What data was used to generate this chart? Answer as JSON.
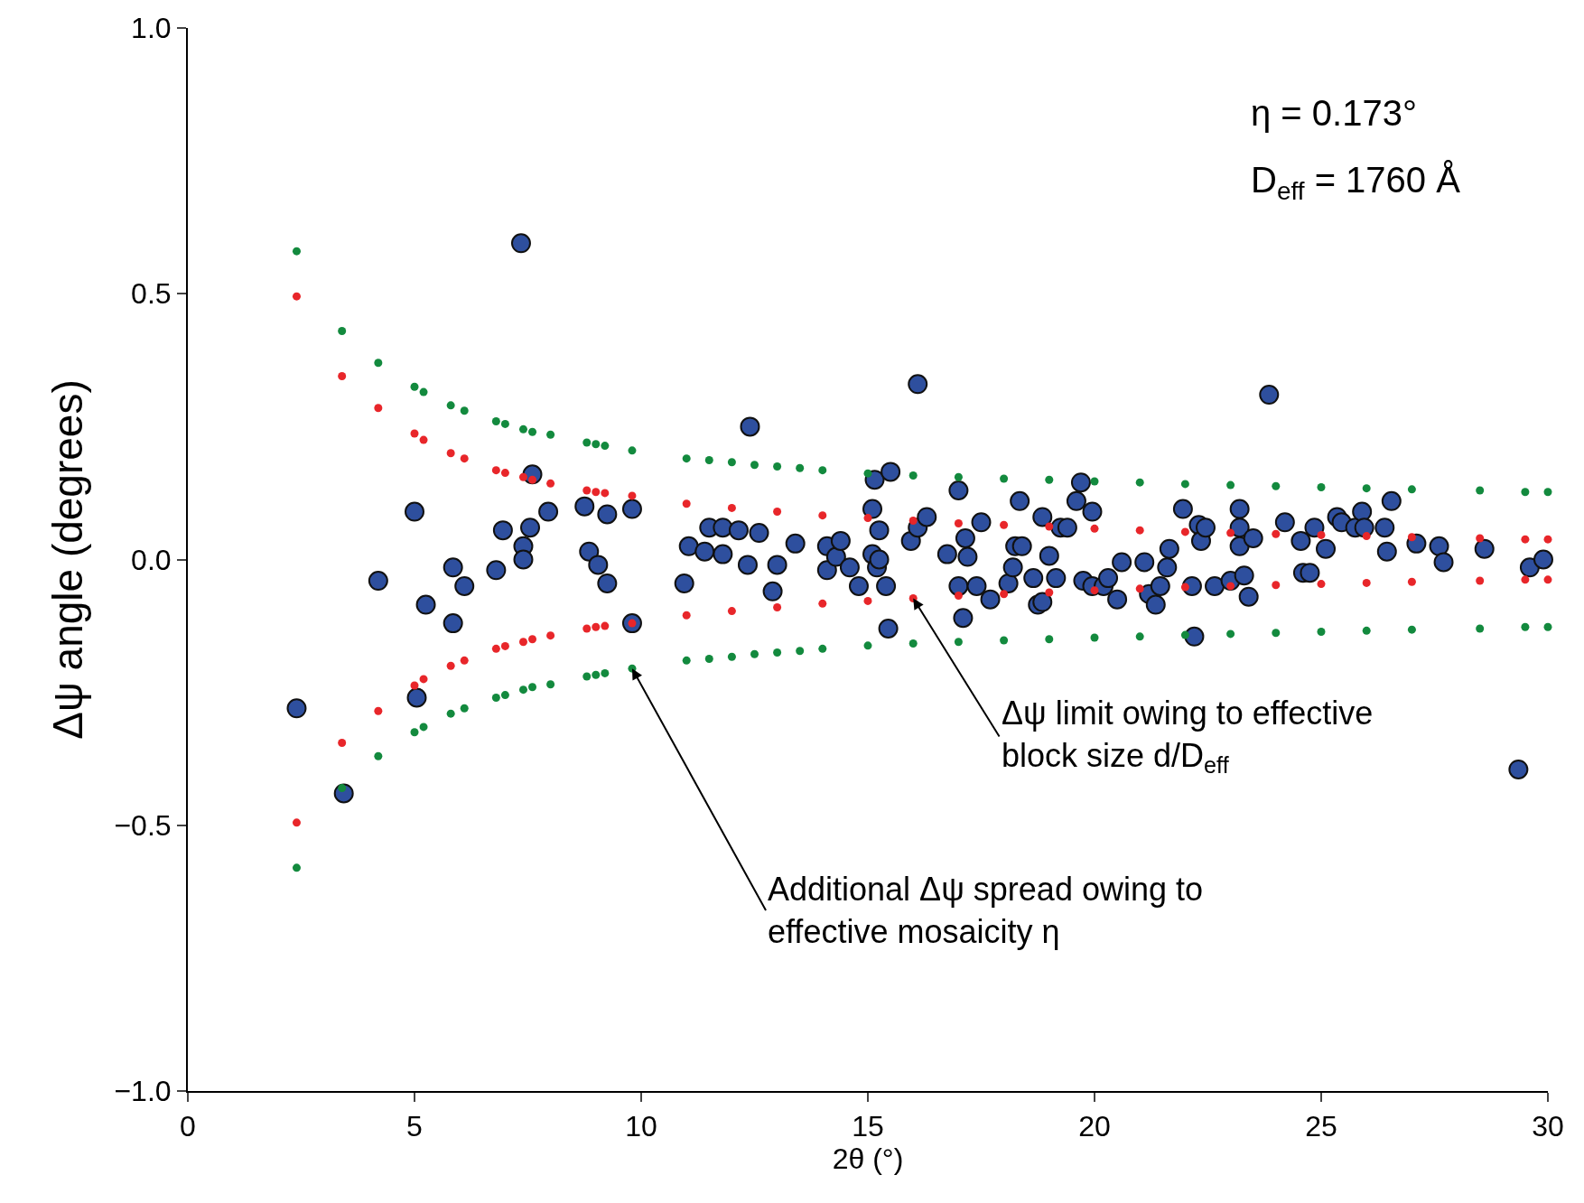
{
  "chart_data": {
    "type": "scatter",
    "xlabel": "2θ (°)",
    "ylabel": "Δψ angle (degrees)",
    "xlim": [
      0,
      30
    ],
    "xticks": [
      0,
      5,
      10,
      15,
      20,
      25,
      30
    ],
    "ylim": [
      -1,
      1
    ],
    "yticks": [
      {
        "value": -1,
        "label": "−1.0"
      },
      {
        "value": -0.5,
        "label": "−0.5"
      },
      {
        "value": 0,
        "label": "0.0"
      },
      {
        "value": 0.5,
        "label": "0.5"
      },
      {
        "value": 1,
        "label": "1.0"
      }
    ],
    "marker": "circle",
    "annotations": [
      "η = 0.173°",
      "D$_{eff}$ = 1760 Å",
      {
        "text": "Δψ limit owing to effective\nblock size d/D$_{eff}$",
        "x": 16,
        "y": -0.073
      },
      {
        "text": "Additional Δψ spread owing to\neffective mosaicity η",
        "x": 9.8,
        "y": -0.205
      }
    ],
    "series": [
      {
        "color": "#138a3e",
        "x": [
          2.4,
          3.4,
          4.2,
          5.0,
          5.2,
          5.8,
          6.1,
          6.8,
          7.0,
          7.4,
          7.6,
          8.0,
          8.8,
          9.0,
          9.2,
          9.8,
          11,
          11.5,
          12,
          12.5,
          13,
          13.5,
          14,
          15,
          16,
          17,
          18,
          19,
          20,
          21,
          22,
          23,
          24,
          25,
          26,
          27,
          28.5,
          29.5,
          30
        ],
        "values": [
          0.58,
          0.43,
          0.37,
          0.325,
          0.315,
          0.29,
          0.28,
          0.26,
          0.255,
          0.245,
          0.24,
          0.235,
          0.22,
          0.217,
          0.214,
          0.205,
          0.19,
          0.187,
          0.183,
          0.178,
          0.175,
          0.172,
          0.168,
          0.162,
          0.158,
          0.155,
          0.152,
          0.15,
          0.147,
          0.145,
          0.142,
          0.14,
          0.138,
          0.136,
          0.134,
          0.132,
          0.13,
          0.127,
          0.127
        ]
      },
      {
        "color": "#138a3e",
        "x": [
          2.4,
          3.4,
          4.2,
          5.0,
          5.2,
          5.8,
          6.1,
          6.8,
          7.0,
          7.4,
          7.6,
          8.0,
          8.8,
          9.0,
          9.2,
          9.8,
          11,
          11.5,
          12,
          12.5,
          13,
          13.5,
          14,
          15,
          16,
          17,
          18,
          19,
          20,
          21,
          22,
          23,
          24,
          25,
          26,
          27,
          28.5,
          29.5,
          30
        ],
        "values": [
          -0.58,
          -0.43,
          -0.37,
          -0.325,
          -0.315,
          -0.29,
          -0.28,
          -0.26,
          -0.255,
          -0.245,
          -0.24,
          -0.235,
          -0.22,
          -0.217,
          -0.214,
          -0.205,
          -0.19,
          -0.187,
          -0.183,
          -0.178,
          -0.175,
          -0.172,
          -0.168,
          -0.162,
          -0.158,
          -0.155,
          -0.152,
          -0.15,
          -0.147,
          -0.145,
          -0.142,
          -0.14,
          -0.138,
          -0.136,
          -0.134,
          -0.132,
          -0.13,
          -0.127,
          -0.127
        ]
      },
      {
        "color": "#e8262a",
        "x": [
          2.4,
          3.4,
          4.2,
          5.0,
          5.2,
          5.8,
          6.1,
          6.8,
          7.0,
          7.4,
          7.6,
          8.0,
          8.8,
          9.0,
          9.2,
          9.8,
          11,
          12,
          13,
          14,
          15,
          16,
          17,
          18,
          19,
          20,
          21,
          22,
          23,
          24,
          25,
          26,
          27,
          28.5,
          29.5,
          30
        ],
        "values": [
          0.495,
          0.345,
          0.285,
          0.237,
          0.225,
          0.2,
          0.19,
          0.168,
          0.163,
          0.155,
          0.15,
          0.143,
          0.13,
          0.127,
          0.125,
          0.12,
          0.105,
          0.097,
          0.09,
          0.083,
          0.078,
          0.073,
          0.068,
          0.065,
          0.062,
          0.058,
          0.055,
          0.052,
          0.05,
          0.048,
          0.046,
          0.044,
          0.042,
          0.04,
          0.038,
          0.038
        ]
      },
      {
        "color": "#e8262a",
        "x": [
          2.4,
          3.4,
          4.2,
          5.0,
          5.2,
          5.8,
          6.1,
          6.8,
          7.0,
          7.4,
          7.6,
          8.0,
          8.8,
          9.0,
          9.2,
          9.8,
          11,
          12,
          13,
          14,
          15,
          16,
          17,
          18,
          19,
          20,
          21,
          22,
          23,
          24,
          25,
          26,
          27,
          28.5,
          29.5,
          30
        ],
        "values": [
          -0.495,
          -0.345,
          -0.285,
          -0.237,
          -0.225,
          -0.2,
          -0.19,
          -0.168,
          -0.163,
          -0.155,
          -0.15,
          -0.143,
          -0.13,
          -0.127,
          -0.125,
          -0.12,
          -0.105,
          -0.097,
          -0.09,
          -0.083,
          -0.078,
          -0.073,
          -0.068,
          -0.065,
          -0.062,
          -0.058,
          -0.055,
          -0.052,
          -0.05,
          -0.048,
          -0.046,
          -0.044,
          -0.042,
          -0.04,
          -0.038,
          -0.038
        ]
      },
      {
        "color": "#2e4f9e",
        "x": [
          2.4,
          3.44,
          4.2,
          5.0,
          5.05,
          5.25,
          5.85,
          5.85,
          6.1,
          6.8,
          6.95,
          7.35,
          7.4,
          7.4,
          7.55,
          7.6,
          7.95,
          8.75,
          8.85,
          9.05,
          9.25,
          9.25,
          9.8,
          9.8,
          10.95,
          11.05,
          11.4,
          11.5,
          11.8,
          11.8,
          12.15,
          12.35,
          12.4,
          12.6,
          12.9,
          13.0,
          13.4,
          14.1,
          14.1,
          14.3,
          14.4,
          14.6,
          14.8,
          15.1,
          15.1,
          15.15,
          15.2,
          15.25,
          15.25,
          15.4,
          15.45,
          15.5,
          15.95,
          16.1,
          16.1,
          16.3,
          16.75,
          17.0,
          17.0,
          17.1,
          17.15,
          17.2,
          17.4,
          17.5,
          17.7,
          18.1,
          18.2,
          18.25,
          18.35,
          18.4,
          18.65,
          18.75,
          18.85,
          18.85,
          19.0,
          19.15,
          19.25,
          19.4,
          19.6,
          19.7,
          19.75,
          19.95,
          19.95,
          20.2,
          20.3,
          20.5,
          20.6,
          21.1,
          21.2,
          21.35,
          21.45,
          21.6,
          21.65,
          21.95,
          22.15,
          22.2,
          22.3,
          22.35,
          22.45,
          22.65,
          23.0,
          23.2,
          23.2,
          23.2,
          23.3,
          23.4,
          23.5,
          23.85,
          24.2,
          24.55,
          24.6,
          24.75,
          24.85,
          25.1,
          25.35,
          25.45,
          25.75,
          25.9,
          25.95,
          26.4,
          26.45,
          26.55,
          27.1,
          27.6,
          27.7,
          28.6,
          29.35,
          29.6,
          29.9
        ],
        "values": [
          -0.28,
          -0.44,
          -0.04,
          0.09,
          -0.26,
          -0.085,
          -0.015,
          -0.12,
          -0.05,
          -0.02,
          0.055,
          0.595,
          0.025,
          0.0,
          0.06,
          0.16,
          0.09,
          0.1,
          0.015,
          -0.01,
          -0.045,
          0.085,
          0.095,
          -0.12,
          -0.045,
          0.025,
          0.015,
          0.06,
          0.06,
          0.01,
          0.055,
          -0.01,
          0.25,
          0.05,
          -0.06,
          -0.01,
          0.03,
          0.025,
          -0.02,
          0.005,
          0.035,
          -0.015,
          -0.05,
          0.095,
          0.01,
          0.15,
          -0.015,
          0.055,
          0.0,
          -0.05,
          -0.13,
          0.165,
          0.035,
          0.33,
          0.06,
          0.08,
          0.01,
          0.13,
          -0.05,
          -0.11,
          0.04,
          0.005,
          -0.05,
          0.07,
          -0.075,
          -0.045,
          -0.015,
          0.025,
          0.11,
          0.025,
          -0.035,
          -0.085,
          0.08,
          -0.08,
          0.007,
          -0.035,
          0.06,
          0.06,
          0.11,
          0.145,
          -0.04,
          0.09,
          -0.05,
          -0.05,
          -0.035,
          -0.075,
          -0.005,
          -0.005,
          -0.065,
          -0.085,
          -0.05,
          -0.015,
          0.02,
          0.095,
          -0.05,
          -0.145,
          0.065,
          0.035,
          0.06,
          -0.05,
          -0.04,
          0.095,
          0.06,
          0.025,
          -0.03,
          -0.07,
          0.04,
          0.31,
          0.07,
          0.035,
          -0.025,
          -0.025,
          0.06,
          0.02,
          0.08,
          0.07,
          0.06,
          0.09,
          0.06,
          0.06,
          0.015,
          0.11,
          0.03,
          0.025,
          -0.005,
          0.02,
          -0.395,
          -0.015,
          0.0
        ]
      }
    ]
  }
}
